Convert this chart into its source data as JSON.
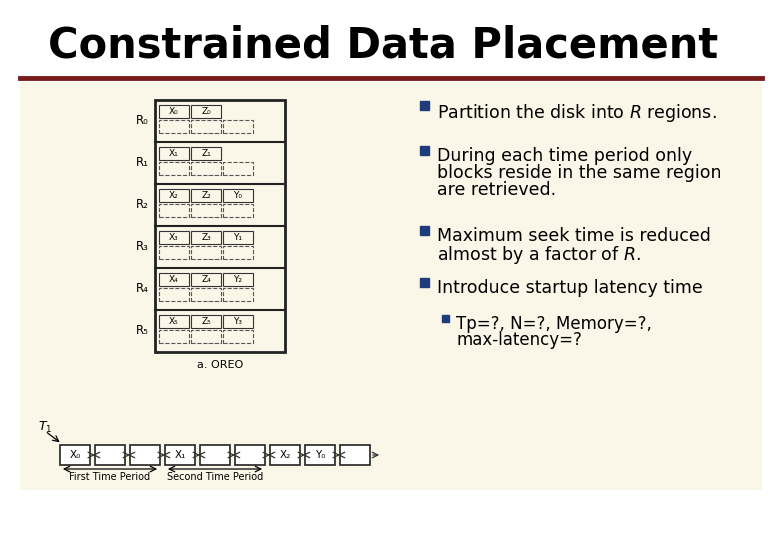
{
  "title": "Constrained Data Placement",
  "title_fontsize": 30,
  "title_color": "#000000",
  "bg_color": "#FFFFFF",
  "content_bg": "#FAF6E8",
  "header_line_color": "#7B1C1C",
  "bullet_color": "#1F3D7A",
  "bullet_text_color": "#000000",
  "bullet_fontsize": 12.5,
  "sub_bullet_fontsize": 12,
  "bullets": [
    "Partition the disk into $R$ regions.",
    "During each time period only\nblocks reside in the same region\nare retrieved.",
    "Maximum seek time is reduced\nalmost by a factor of $R$.",
    "Introduce startup latency time"
  ],
  "sub_bullet": "Tp=?, N=?, Memory=?,\nmax-latency=?",
  "regions": [
    "R_0",
    "R_1",
    "R_2",
    "R_3",
    "R_4",
    "R_5"
  ],
  "region_labels": [
    "R₀",
    "R₁",
    "R₂",
    "R₃",
    "R₄",
    "R₅"
  ],
  "region_blocks": [
    [
      "X₀",
      "Z₀"
    ],
    [
      "X₁",
      "Z₁"
    ],
    [
      "X₂",
      "Z₂",
      "Y₀"
    ],
    [
      "X₃",
      "Z₃",
      "Y₁"
    ],
    [
      "X₄",
      "Z₄",
      "Y₂"
    ],
    [
      "X₅",
      "Z₅",
      "Y₃"
    ]
  ],
  "timeline_blocks": [
    "X₀",
    "",
    "",
    "X₁",
    "",
    "",
    "X₂",
    "Y₀",
    ""
  ],
  "first_period": "First Time Period",
  "second_period": "Second Time Period",
  "disk_label": "a. OREO"
}
